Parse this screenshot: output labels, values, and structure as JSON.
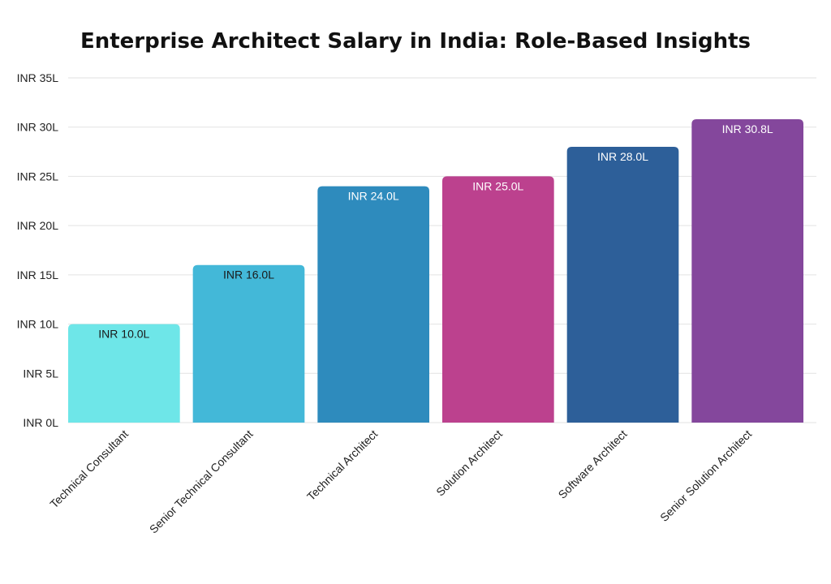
{
  "chart_data": {
    "type": "bar",
    "title": "Enterprise Architect Salary in India: Role-Based Insights",
    "xlabel": "",
    "ylabel": "",
    "ylim": [
      0,
      35
    ],
    "y_ticks": [
      0,
      5,
      10,
      15,
      20,
      25,
      30,
      35
    ],
    "y_tick_labels": [
      "INR 0L",
      "INR 5L",
      "INR 10L",
      "INR 15L",
      "INR 20L",
      "INR 25L",
      "INR 30L",
      "INR 35L"
    ],
    "grid": true,
    "categories": [
      "Technical Consultant",
      "Senior Technical Consultant",
      "Technical Architect",
      "Solution Architect",
      "Software Architect",
      "Senior Solution Architect"
    ],
    "values": [
      10.0,
      16.0,
      24.0,
      25.0,
      28.0,
      30.8
    ],
    "data_labels": [
      "INR 10.0L",
      "INR 16.0L",
      "INR 24.0L",
      "INR 25.0L",
      "INR 28.0L",
      "INR 30.8L"
    ],
    "colors": [
      "#6ee6e8",
      "#43b8d8",
      "#2e8bbd",
      "#bc418e",
      "#2d5f99",
      "#84479c"
    ],
    "label_colors": [
      "#1a1a1a",
      "#1a1a1a",
      "#ffffff",
      "#ffffff",
      "#ffffff",
      "#ffffff"
    ]
  }
}
